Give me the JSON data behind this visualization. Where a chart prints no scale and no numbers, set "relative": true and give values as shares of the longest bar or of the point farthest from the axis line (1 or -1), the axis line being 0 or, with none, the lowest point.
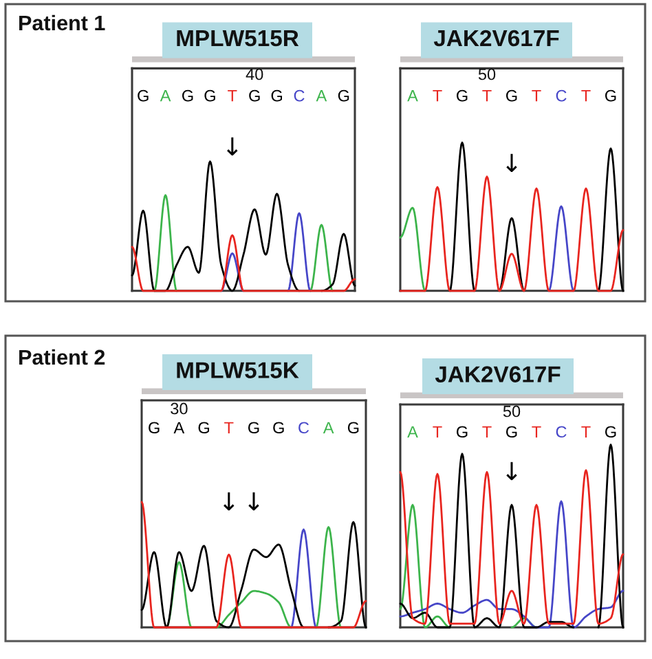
{
  "chart_data": [
    {
      "type": "line",
      "title": "MPLW515R",
      "relative": true,
      "categories": [
        null,
        "G",
        null,
        "A",
        null,
        "G",
        null,
        "G",
        null,
        "T",
        null,
        "G",
        null,
        "G",
        null,
        "C",
        null,
        "A",
        null,
        "G",
        null
      ],
      "series": [
        {
          "color": "#3cb44b",
          "values": [
            null,
            null,
            0,
            0.74,
            0,
            null,
            null,
            null,
            null,
            null,
            null,
            null,
            null,
            null,
            null,
            null,
            0,
            0.51,
            0,
            null,
            null
          ]
        },
        {
          "color": "#4646c8",
          "values": [
            null,
            null,
            null,
            null,
            null,
            null,
            null,
            null,
            0,
            0.29,
            0,
            null,
            null,
            null,
            0,
            0.6,
            0,
            null,
            null,
            null,
            null
          ]
        },
        {
          "color": "#000000",
          "values": [
            0.12,
            0.62,
            0,
            0,
            0.2,
            0.34,
            0.14,
            1.0,
            0.2,
            0,
            0.28,
            0.63,
            0.28,
            0.75,
            0.2,
            0,
            null,
            0,
            0.05,
            0.44,
            0.04
          ]
        },
        {
          "color": "#e8251f",
          "values": [
            0.34,
            0,
            0,
            0,
            0,
            0,
            0,
            0,
            0,
            0.43,
            0,
            0,
            0,
            0,
            0,
            0,
            0,
            0,
            0,
            0,
            0.09
          ]
        }
      ],
      "annotations": [
        "Patient 1",
        "40",
        "↓"
      ]
    },
    {
      "type": "line",
      "title": "JAK2V617F",
      "relative": true,
      "categories": [
        null,
        "A",
        null,
        "T",
        null,
        "G",
        null,
        "T",
        null,
        "G",
        null,
        "T",
        null,
        "C",
        null,
        "T",
        null,
        "G",
        null
      ],
      "series": [
        {
          "color": "#3cb44b",
          "values": [
            0.36,
            0.56,
            0,
            null,
            null,
            null,
            null,
            null,
            null,
            null,
            null,
            null,
            null,
            null,
            null,
            null,
            null,
            null,
            null
          ]
        },
        {
          "color": "#4646c8",
          "values": [
            null,
            null,
            null,
            null,
            null,
            null,
            null,
            null,
            null,
            null,
            null,
            null,
            0,
            0.57,
            0,
            null,
            null,
            null,
            null
          ]
        },
        {
          "color": "#000000",
          "values": [
            null,
            null,
            null,
            null,
            0,
            1.0,
            0,
            null,
            0,
            0.49,
            0,
            null,
            null,
            null,
            null,
            null,
            0,
            0.96,
            0
          ]
        },
        {
          "color": "#e8251f",
          "values": [
            0,
            0,
            0,
            0.7,
            0,
            0,
            0,
            0.77,
            0,
            0.25,
            0,
            0.69,
            0,
            0,
            0,
            0.69,
            0,
            0,
            0.41
          ]
        }
      ],
      "annotations": [
        "50",
        "↓"
      ]
    },
    {
      "type": "line",
      "title": "MPLW515K",
      "relative": true,
      "categories": [
        null,
        "G",
        null,
        "A",
        null,
        "G",
        null,
        "T",
        null,
        "G",
        null,
        "G",
        null,
        "C",
        null,
        "A",
        null,
        "G",
        null
      ],
      "series": [
        {
          "color": "#3cb44b",
          "values": [
            null,
            null,
            0,
            0.52,
            0,
            null,
            0,
            0.1,
            0.2,
            0.29,
            0.27,
            0.2,
            0,
            null,
            0,
            0.8,
            0,
            null,
            null
          ]
        },
        {
          "color": "#4646c8",
          "values": [
            null,
            null,
            null,
            null,
            null,
            null,
            null,
            null,
            null,
            null,
            null,
            null,
            0,
            0.78,
            0,
            null,
            null,
            null,
            null
          ]
        },
        {
          "color": "#000000",
          "values": [
            0.14,
            0.6,
            0,
            0.6,
            0.29,
            0.65,
            0.05,
            0,
            0.3,
            0.62,
            0.56,
            0.66,
            0.3,
            0,
            null,
            0,
            0.05,
            0.84,
            0
          ]
        },
        {
          "color": "#e8251f",
          "values": [
            1.0,
            0,
            0,
            0,
            0,
            0,
            0,
            0.58,
            0,
            0,
            0,
            0,
            0,
            0,
            0,
            0,
            0,
            0,
            0.21
          ]
        }
      ],
      "annotations": [
        "Patient 2",
        "30",
        "↓",
        "↓"
      ]
    },
    {
      "type": "line",
      "title": "JAK2V617F",
      "relative": true,
      "categories": [
        null,
        "A",
        null,
        "T",
        null,
        "G",
        null,
        "T",
        null,
        "G",
        null,
        "T",
        null,
        "C",
        null,
        "T",
        null,
        "G",
        null
      ],
      "series": [
        {
          "color": "#3cb44b",
          "values": [
            0.1,
            0.67,
            0,
            0.06,
            0,
            null,
            null,
            null,
            null,
            0,
            0.05,
            0,
            null,
            null,
            null,
            null,
            null,
            null,
            null
          ]
        },
        {
          "color": "#4646c8",
          "values": [
            0.06,
            0.08,
            0.1,
            0.13,
            0.1,
            0.08,
            0.12,
            0.15,
            0.1,
            0.1,
            0.06,
            0,
            0,
            0.69,
            0,
            0.06,
            0.1,
            0.11,
            0.2
          ]
        },
        {
          "color": "#000000",
          "values": [
            0.13,
            0.05,
            0.08,
            0,
            0,
            0.95,
            0,
            0.05,
            0,
            0.67,
            0,
            0,
            0.03,
            0.03,
            0,
            null,
            0,
            1.0,
            0
          ]
        },
        {
          "color": "#e8251f",
          "values": [
            0.85,
            0.05,
            0.02,
            0.84,
            0.02,
            0.02,
            0.02,
            0.85,
            0.02,
            0.2,
            0.02,
            0.67,
            0.02,
            0.02,
            0.02,
            0.86,
            0.02,
            0.05,
            0.4
          ]
        }
      ],
      "annotations": [
        "50",
        "↓"
      ]
    }
  ]
}
